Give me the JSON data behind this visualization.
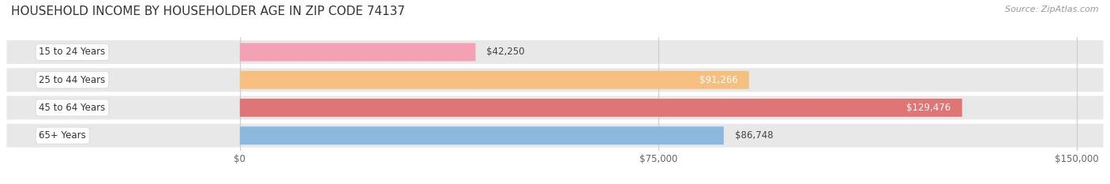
{
  "title": "HOUSEHOLD INCOME BY HOUSEHOLDER AGE IN ZIP CODE 74137",
  "source": "Source: ZipAtlas.com",
  "categories": [
    "15 to 24 Years",
    "25 to 44 Years",
    "45 to 64 Years",
    "65+ Years"
  ],
  "values": [
    42250,
    91266,
    129476,
    86748
  ],
  "bar_colors": [
    "#f4a0b5",
    "#f5bf80",
    "#e07575",
    "#8ab8df"
  ],
  "row_bg_color": "#e8e8e8",
  "label_bg_color": "#ffffff",
  "value_colors": [
    "#555555",
    "#ffffff",
    "#ffffff",
    "#555555"
  ],
  "xlim": [
    0,
    150000
  ],
  "xticks": [
    0,
    75000,
    150000
  ],
  "xtick_labels": [
    "$0",
    "$75,000",
    "$150,000"
  ],
  "title_fontsize": 11,
  "source_fontsize": 8,
  "label_fontsize": 8.5,
  "value_fontsize": 8.5,
  "background_color": "#ffffff",
  "grid_color": "#cccccc"
}
